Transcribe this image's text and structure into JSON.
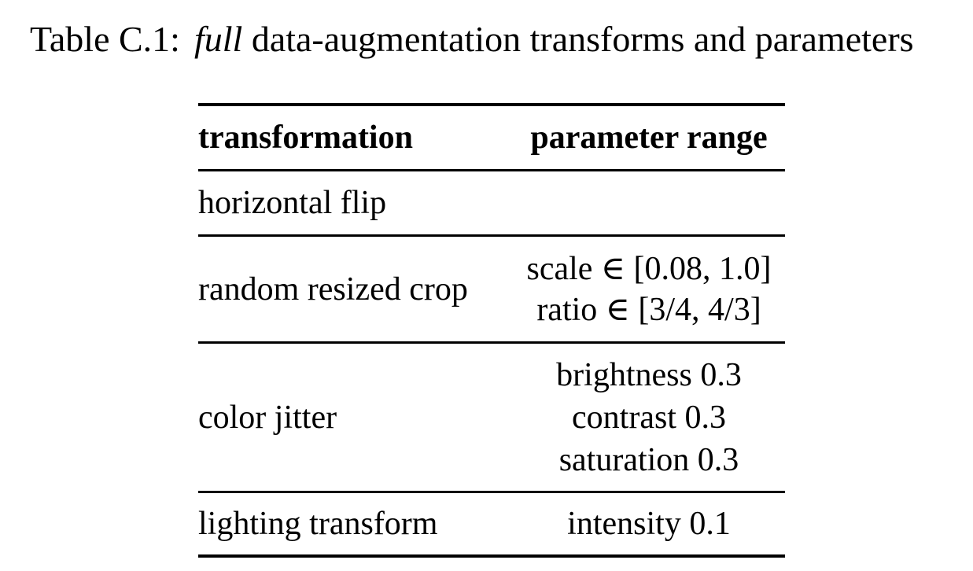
{
  "caption": {
    "label": "Table C.1:",
    "emphasis": "full",
    "text": "data-augmentation transforms and parameters"
  },
  "table": {
    "headers": [
      "transformation",
      "parameter range"
    ],
    "rows": [
      {
        "transformation": "horizontal flip",
        "parameters": []
      },
      {
        "transformation": "random resized crop",
        "parameters": [
          "scale ∈ [0.08, 1.0]",
          "ratio ∈ [3/4, 4/3]"
        ]
      },
      {
        "transformation": "color jitter",
        "parameters": [
          "brightness 0.3",
          "contrast 0.3",
          "saturation 0.3"
        ]
      },
      {
        "transformation": "lighting transform",
        "parameters": [
          "intensity 0.1"
        ]
      }
    ]
  }
}
